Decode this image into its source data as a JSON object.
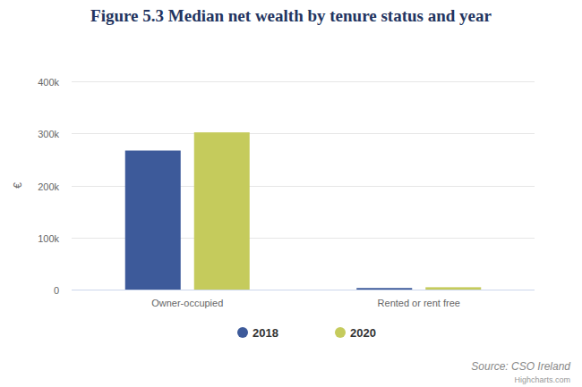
{
  "chart_data": {
    "type": "bar",
    "title": "Figure 5.3 Median net wealth by tenure status and year",
    "y_label": "€",
    "categories": [
      "Owner-occupied",
      "Rented or rent free"
    ],
    "series": [
      {
        "name": "2018",
        "color": "#3d5a9a",
        "values": [
          267000,
          3000
        ]
      },
      {
        "name": "2020",
        "color": "#c5cb5c",
        "values": [
          302000,
          4500
        ]
      }
    ],
    "ylim": [
      0,
      400000
    ],
    "yticks": [
      {
        "value": 0,
        "label": "0"
      },
      {
        "value": 100000,
        "label": "100k"
      },
      {
        "value": 200000,
        "label": "200k"
      },
      {
        "value": 300000,
        "label": "300k"
      },
      {
        "value": 400000,
        "label": "400k"
      }
    ],
    "grid": true,
    "legend": "bottom",
    "annotations": [
      "Source: CSO Ireland",
      "Highcharts.com"
    ]
  }
}
